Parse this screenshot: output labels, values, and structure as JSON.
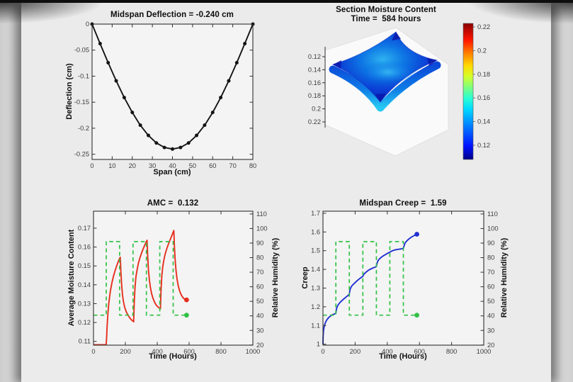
{
  "window": {
    "backdrop_color": "#d8d8d8",
    "page_color": "#ebebeb",
    "top_border_color": "#0e0e0e"
  },
  "colors": {
    "plot_bg": "#f4f4f4",
    "axis": "#2f2f2f",
    "tick_text": "#3d3d3d",
    "black_line": "#141414",
    "red": "#e62e1d",
    "green": "#32c146",
    "blue": "#2230d2",
    "surface_blue_dark": "#041693",
    "surface_blue_mid": "#0b3fd6",
    "surface_cyan": "#27c9f3"
  },
  "chart_data": {
    "deflection": {
      "type": "line",
      "title": "Midspan Deflection = -0.240 cm",
      "xlabel": "Span (cm)",
      "ylabel": "Deflection (cm)",
      "xlim": [
        0,
        80
      ],
      "ylim": [
        -0.26,
        0
      ],
      "xticks": [
        0,
        10,
        20,
        30,
        40,
        50,
        60,
        70,
        80
      ],
      "yticks": [
        0,
        -0.05,
        -0.1,
        -0.15,
        -0.2,
        -0.25
      ],
      "x": [
        0,
        4,
        8,
        12,
        16,
        20,
        24,
        28,
        32,
        36,
        40,
        44,
        48,
        52,
        56,
        60,
        64,
        68,
        72,
        76,
        80
      ],
      "y": [
        0,
        -0.0375,
        -0.0742,
        -0.109,
        -0.1411,
        -0.1697,
        -0.1942,
        -0.2138,
        -0.2283,
        -0.237,
        -0.24,
        -0.237,
        -0.2283,
        -0.2138,
        -0.1942,
        -0.1697,
        -0.1411,
        -0.109,
        -0.0742,
        -0.0375,
        0
      ],
      "marker": "circle"
    },
    "moisture": {
      "type": "surface",
      "title": "Section Moisture Content",
      "subtitle": "Time =  584 hours",
      "zticks": [
        0.12,
        0.14,
        0.16,
        0.18,
        0.2,
        0.22
      ],
      "z_axis_reversed": true,
      "surface_values_approx": [
        0.11,
        0.16
      ],
      "colorbar": {
        "colormap": "jet",
        "range": [
          0.108,
          0.223
        ],
        "ticks": [
          0.12,
          0.14,
          0.16,
          0.18,
          0.2,
          0.22
        ]
      }
    },
    "amc": {
      "type": "line",
      "title": "AMC =  0.132",
      "xlabel": "Time (Hours)",
      "ylabel_left": "Average Moisture Content",
      "ylabel_right": "Relative Humidity (%)",
      "xlim": [
        0,
        1000
      ],
      "ylim_left": [
        0.108,
        0.179
      ],
      "ylim_right": [
        19.9,
        111.9
      ],
      "xticks": [
        0,
        200,
        400,
        600,
        800,
        1000
      ],
      "yticks_left": [
        0.11,
        0.12,
        0.13,
        0.14,
        0.15,
        0.16,
        0.17
      ],
      "yticks_right": [
        20,
        30,
        40,
        50,
        60,
        70,
        80,
        90,
        100,
        110
      ],
      "series": [
        {
          "name": "Average Moisture Content",
          "axis": "left",
          "color_key": "red",
          "style": "solid",
          "end_marker": true,
          "points": [
            [
              0,
              0.1082
            ],
            [
              79,
              0.1082
            ],
            [
              82,
              0.111
            ],
            [
              86,
              0.1185
            ],
            [
              91,
              0.1255
            ],
            [
              96,
              0.1302
            ],
            [
              106,
              0.1366
            ],
            [
              116,
              0.1412
            ],
            [
              126,
              0.1447
            ],
            [
              136,
              0.1476
            ],
            [
              146,
              0.1501
            ],
            [
              156,
              0.1524
            ],
            [
              164,
              0.154
            ],
            [
              168,
              0.1546
            ],
            [
              172,
              0.1468
            ],
            [
              177,
              0.1398
            ],
            [
              182,
              0.1348
            ],
            [
              188,
              0.131
            ],
            [
              196,
              0.128
            ],
            [
              206,
              0.1256
            ],
            [
              216,
              0.124
            ],
            [
              226,
              0.1227
            ],
            [
              236,
              0.1216
            ],
            [
              245,
              0.1209
            ],
            [
              252,
              0.1204
            ],
            [
              256,
              0.131
            ],
            [
              261,
              0.139
            ],
            [
              266,
              0.1438
            ],
            [
              272,
              0.1472
            ],
            [
              281,
              0.1511
            ],
            [
              291,
              0.1542
            ],
            [
              301,
              0.1567
            ],
            [
              311,
              0.1589
            ],
            [
              321,
              0.1609
            ],
            [
              329,
              0.1623
            ],
            [
              336,
              0.1636
            ],
            [
              340,
              0.1553
            ],
            [
              345,
              0.1478
            ],
            [
              350,
              0.143
            ],
            [
              356,
              0.1392
            ],
            [
              364,
              0.1355
            ],
            [
              374,
              0.1326
            ],
            [
              384,
              0.1306
            ],
            [
              394,
              0.1292
            ],
            [
              404,
              0.1283
            ],
            [
              412,
              0.1277
            ],
            [
              420,
              0.1273
            ],
            [
              424,
              0.1375
            ],
            [
              429,
              0.1448
            ],
            [
              434,
              0.1492
            ],
            [
              440,
              0.1524
            ],
            [
              449,
              0.156
            ],
            [
              459,
              0.1589
            ],
            [
              469,
              0.1613
            ],
            [
              479,
              0.1635
            ],
            [
              489,
              0.1655
            ],
            [
              497,
              0.1672
            ],
            [
              504,
              0.1688
            ],
            [
              508,
              0.16
            ],
            [
              513,
              0.1525
            ],
            [
              518,
              0.1473
            ],
            [
              524,
              0.1432
            ],
            [
              532,
              0.1394
            ],
            [
              542,
              0.1364
            ],
            [
              552,
              0.1344
            ],
            [
              562,
              0.1331
            ],
            [
              572,
              0.1323
            ],
            [
              584,
              0.132
            ]
          ]
        },
        {
          "name": "Relative Humidity",
          "axis": "right",
          "color_key": "green",
          "style": "dashed",
          "end_marker": true,
          "points": [
            [
              0,
              40.5
            ],
            [
              80,
              40.5
            ],
            [
              80,
              91
            ],
            [
              164,
              91
            ],
            [
              164,
              40.5
            ],
            [
              248,
              40.5
            ],
            [
              248,
              91
            ],
            [
              332,
              91
            ],
            [
              332,
              40.5
            ],
            [
              416,
              40.5
            ],
            [
              416,
              91
            ],
            [
              500,
              91
            ],
            [
              500,
              40.5
            ],
            [
              584,
              40.5
            ]
          ]
        }
      ]
    },
    "creep": {
      "type": "line",
      "title": "Midspan Creep =  1.59",
      "xlabel": "Time (Hours)",
      "ylabel_left": "Creep",
      "ylabel_right": "Relative Humidity (%)",
      "xlim": [
        0,
        1000
      ],
      "ylim_left": [
        0.995,
        1.711
      ],
      "ylim_right": [
        19.9,
        111.9
      ],
      "xticks": [
        0,
        200,
        400,
        600,
        800,
        1000
      ],
      "yticks_left": [
        1,
        1.1,
        1.2,
        1.3,
        1.4,
        1.5,
        1.6,
        1.7
      ],
      "yticks_right": [
        20,
        30,
        40,
        50,
        60,
        70,
        80,
        90,
        100,
        110
      ],
      "series": [
        {
          "name": "Midspan Creep",
          "axis": "left",
          "color_key": "blue",
          "style": "solid",
          "end_marker": true,
          "points": [
            [
              0,
              1.0
            ],
            [
              1,
              1.04
            ],
            [
              3,
              1.068
            ],
            [
              6,
              1.088
            ],
            [
              10,
              1.103
            ],
            [
              16,
              1.117
            ],
            [
              24,
              1.13
            ],
            [
              34,
              1.141
            ],
            [
              46,
              1.15
            ],
            [
              58,
              1.157
            ],
            [
              70,
              1.161
            ],
            [
              80,
              1.165
            ],
            [
              83,
              1.183
            ],
            [
              87,
              1.197
            ],
            [
              92,
              1.207
            ],
            [
              99,
              1.216
            ],
            [
              108,
              1.225
            ],
            [
              119,
              1.234
            ],
            [
              131,
              1.243
            ],
            [
              143,
              1.252
            ],
            [
              155,
              1.26
            ],
            [
              164,
              1.268
            ],
            [
              167,
              1.285
            ],
            [
              171,
              1.298
            ],
            [
              176,
              1.307
            ],
            [
              183,
              1.315
            ],
            [
              192,
              1.323
            ],
            [
              203,
              1.332
            ],
            [
              216,
              1.342
            ],
            [
              230,
              1.352
            ],
            [
              248,
              1.363
            ],
            [
              252,
              1.37
            ],
            [
              257,
              1.376
            ],
            [
              264,
              1.382
            ],
            [
              273,
              1.389
            ],
            [
              284,
              1.396
            ],
            [
              297,
              1.402
            ],
            [
              312,
              1.408
            ],
            [
              325,
              1.412
            ],
            [
              332,
              1.415
            ],
            [
              335,
              1.428
            ],
            [
              339,
              1.44
            ],
            [
              344,
              1.449
            ],
            [
              351,
              1.456
            ],
            [
              360,
              1.463
            ],
            [
              371,
              1.47
            ],
            [
              384,
              1.477
            ],
            [
              398,
              1.484
            ],
            [
              409,
              1.489
            ],
            [
              416,
              1.492
            ],
            [
              421,
              1.495
            ],
            [
              428,
              1.498
            ],
            [
              437,
              1.501
            ],
            [
              448,
              1.504
            ],
            [
              461,
              1.506
            ],
            [
              475,
              1.508
            ],
            [
              488,
              1.51
            ],
            [
              500,
              1.512
            ],
            [
              503,
              1.522
            ],
            [
              507,
              1.533
            ],
            [
              512,
              1.542
            ],
            [
              519,
              1.55
            ],
            [
              528,
              1.558
            ],
            [
              539,
              1.566
            ],
            [
              551,
              1.573
            ],
            [
              565,
              1.58
            ],
            [
              584,
              1.588
            ]
          ]
        },
        {
          "name": "Relative Humidity",
          "axis": "right",
          "color_key": "green",
          "style": "dashed",
          "end_marker": true,
          "points": [
            [
              0,
              40.5
            ],
            [
              80,
              40.5
            ],
            [
              80,
              91
            ],
            [
              164,
              91
            ],
            [
              164,
              40.5
            ],
            [
              248,
              40.5
            ],
            [
              248,
              91
            ],
            [
              332,
              91
            ],
            [
              332,
              40.5
            ],
            [
              416,
              40.5
            ],
            [
              416,
              91
            ],
            [
              500,
              91
            ],
            [
              500,
              40.5
            ],
            [
              584,
              40.5
            ]
          ]
        }
      ]
    }
  }
}
